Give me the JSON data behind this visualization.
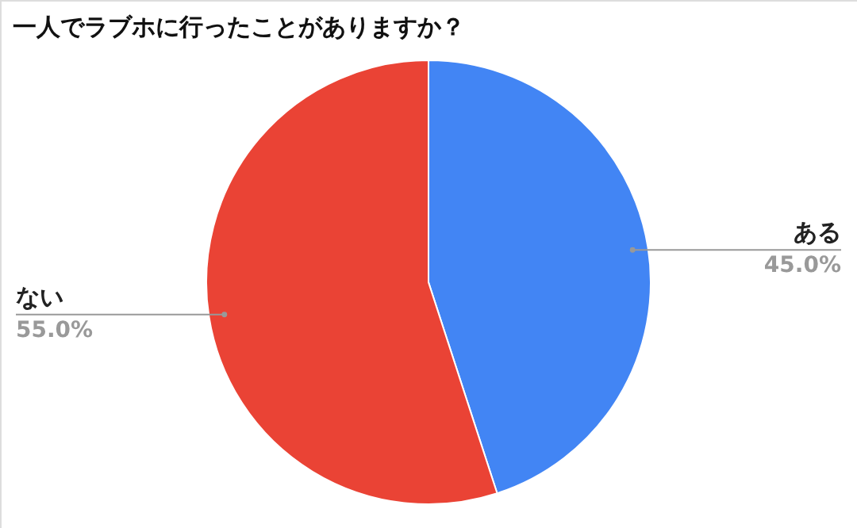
{
  "chart_data": {
    "type": "pie",
    "title": "一人でラブホに行ったことがありますか？",
    "categories": [
      "ある",
      "ない"
    ],
    "values": [
      45.0,
      55.0
    ],
    "colors": [
      "#4285f4",
      "#ea4335"
    ],
    "value_labels": [
      "45.0%",
      "55.0%"
    ]
  }
}
